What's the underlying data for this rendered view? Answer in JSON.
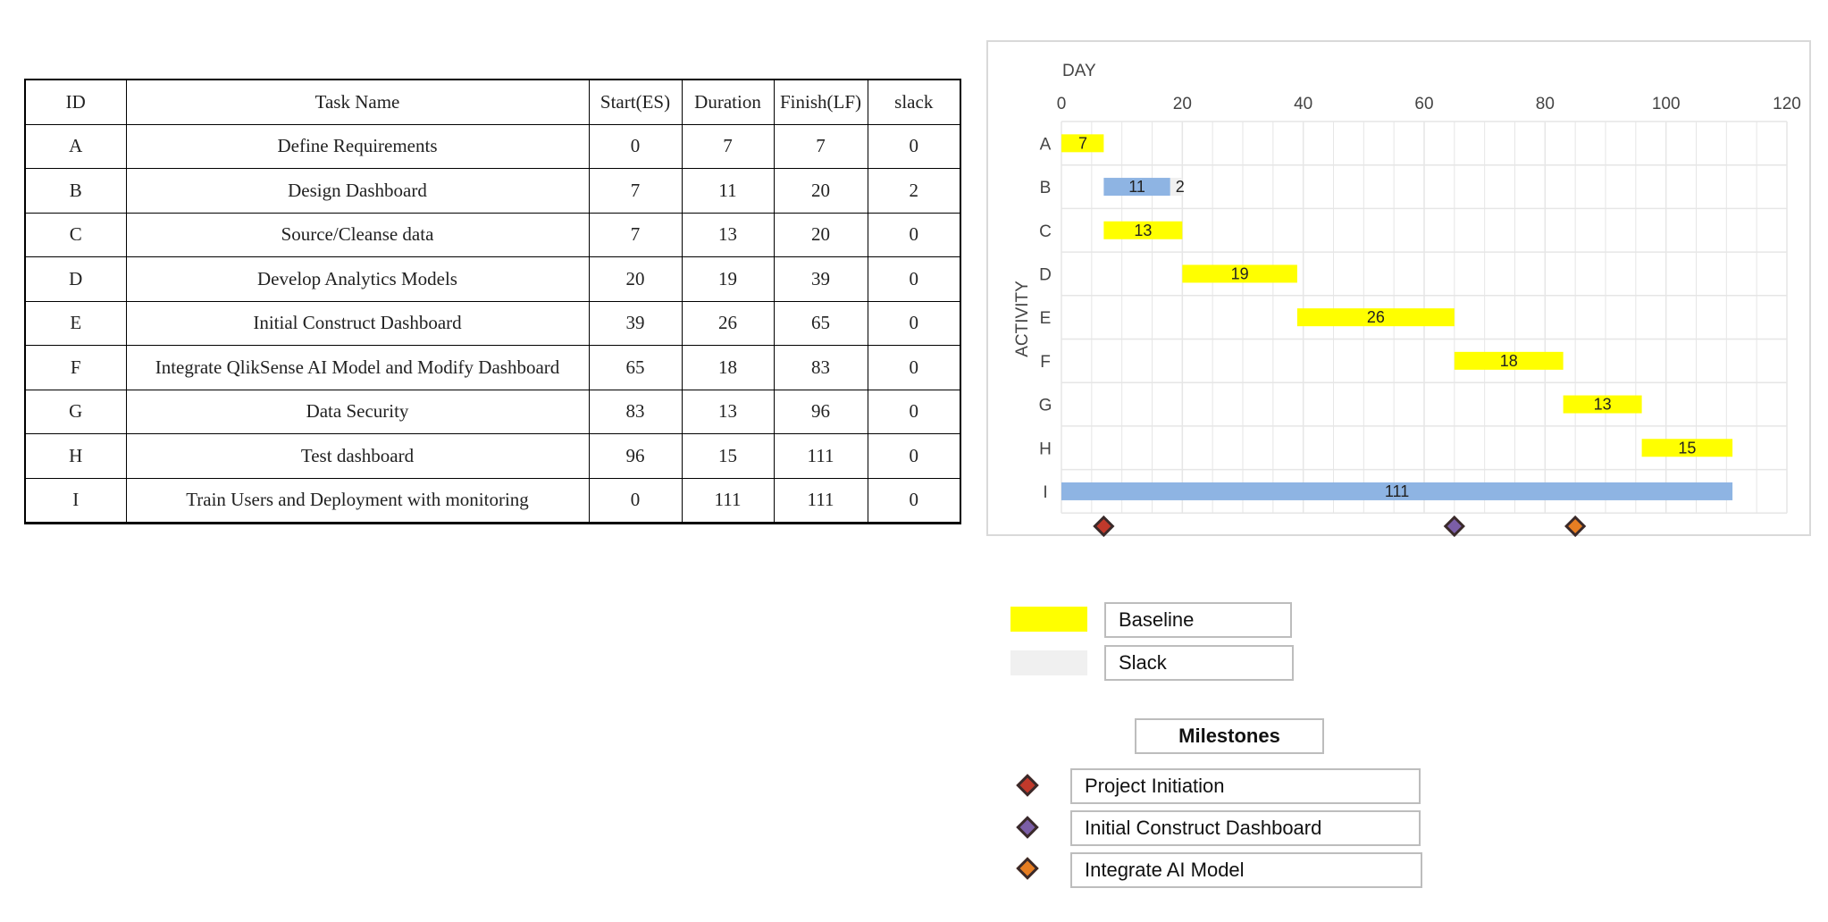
{
  "table": {
    "columns": [
      "ID",
      "Task Name",
      "Start(ES)",
      "Duration",
      "Finish(LF)",
      "slack"
    ],
    "rows": [
      [
        "A",
        "Define Requirements",
        "0",
        "7",
        "7",
        "0"
      ],
      [
        "B",
        "Design Dashboard",
        "7",
        "11",
        "20",
        "2"
      ],
      [
        "C",
        "Source/Cleanse data",
        "7",
        "13",
        "20",
        "0"
      ],
      [
        "D",
        "Develop Analytics Models",
        "20",
        "19",
        "39",
        "0"
      ],
      [
        "E",
        "Initial Construct Dashboard",
        "39",
        "26",
        "65",
        "0"
      ],
      [
        "F",
        "Integrate QlikSense AI Model and Modify Dashboard",
        "65",
        "18",
        "83",
        "0"
      ],
      [
        "G",
        "Data Security",
        "83",
        "13",
        "96",
        "0"
      ],
      [
        "H",
        "Test dashboard",
        "96",
        "15",
        "111",
        "0"
      ],
      [
        "I",
        "Train Users and Deployment with monitoring",
        "0",
        "111",
        "111",
        "0"
      ]
    ]
  },
  "chart_data": {
    "type": "bar",
    "orientation": "horizontal-gantt",
    "xlabel": "DAY",
    "ylabel": "ACTIVITY",
    "xlim": [
      0,
      120
    ],
    "xticks": [
      0,
      20,
      40,
      60,
      80,
      100,
      120
    ],
    "grid": true,
    "categories": [
      "A",
      "B",
      "C",
      "D",
      "E",
      "F",
      "G",
      "H",
      "I"
    ],
    "bars": [
      {
        "activity": "A",
        "start": 0,
        "duration": 7,
        "label": "7",
        "style": "baseline"
      },
      {
        "activity": "B",
        "start": 7,
        "duration": 11,
        "label": "11",
        "style": "blue",
        "slack": 2,
        "slack_label": "2"
      },
      {
        "activity": "C",
        "start": 7,
        "duration": 13,
        "label": "13",
        "style": "baseline"
      },
      {
        "activity": "D",
        "start": 20,
        "duration": 19,
        "label": "19",
        "style": "baseline"
      },
      {
        "activity": "E",
        "start": 39,
        "duration": 26,
        "label": "26",
        "style": "baseline"
      },
      {
        "activity": "F",
        "start": 65,
        "duration": 18,
        "label": "18",
        "style": "baseline"
      },
      {
        "activity": "G",
        "start": 83,
        "duration": 13,
        "label": "13",
        "style": "baseline"
      },
      {
        "activity": "H",
        "start": 96,
        "duration": 15,
        "label": "15",
        "style": "baseline"
      },
      {
        "activity": "I",
        "start": 0,
        "duration": 111,
        "label": "111",
        "style": "blue"
      }
    ],
    "milestones": [
      {
        "name": "Project Initiation",
        "day": 7,
        "color": "#c0392b"
      },
      {
        "name": "Initial Construct Dashboard",
        "day": 65,
        "color": "#7b5ea7"
      },
      {
        "name": "Integrate AI Model",
        "day": 85,
        "color": "#e67e22"
      }
    ],
    "colors": {
      "baseline": "#ffff00",
      "blue": "#8eb4e3",
      "slack": "#f0f0f0",
      "grid": "#e6e6e6"
    }
  },
  "legend": {
    "baseline_label": "Baseline",
    "slack_label": "Slack",
    "milestones_title": "Milestones",
    "milestones": [
      "Project Initiation",
      "Initial Construct Dashboard",
      "Integrate AI Model"
    ]
  }
}
